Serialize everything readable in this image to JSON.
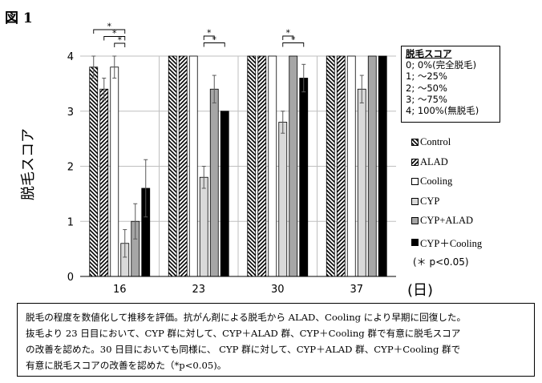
{
  "figure_label": "図 1",
  "chart_data": {
    "type": "bar",
    "ylabel": "脱毛スコア",
    "xunit": "(日)",
    "ylim": [
      0,
      4
    ],
    "yticks": [
      "0",
      "1",
      "2",
      "3",
      "4"
    ],
    "categories": [
      "16",
      "23",
      "30",
      "37"
    ],
    "grid": "horizontal",
    "series": [
      {
        "name": "Control",
        "values": [
          3.8,
          4,
          4,
          4
        ],
        "errors": [
          0.2,
          0,
          0,
          0
        ],
        "fill": "hatch-back"
      },
      {
        "name": "ALAD",
        "values": [
          3.4,
          4,
          4,
          4
        ],
        "errors": [
          0.2,
          0,
          0,
          0
        ],
        "fill": "hatch-fwd"
      },
      {
        "name": "Cooling",
        "values": [
          3.8,
          4,
          4,
          4
        ],
        "errors": [
          0.2,
          0,
          0,
          0
        ],
        "fill": "#ffffff"
      },
      {
        "name": "CYP",
        "values": [
          0.6,
          1.8,
          2.8,
          3.4
        ],
        "errors": [
          0.25,
          0.2,
          0.2,
          0.25
        ],
        "fill": "#d9d9d9"
      },
      {
        "name": "CYP+ALAD",
        "values": [
          1.0,
          3.4,
          4,
          4
        ],
        "errors": [
          0.32,
          0.25,
          0,
          0
        ],
        "fill": "#a6a6a6"
      },
      {
        "name": "CYP＋Cooling",
        "values": [
          1.6,
          3.0,
          3.6,
          4
        ],
        "errors": [
          0.52,
          0,
          0.25,
          0
        ],
        "fill": "#000000"
      }
    ],
    "significance": [
      {
        "category": "16",
        "pairs": [
          [
            "Control",
            "CYP"
          ],
          [
            "ALAD",
            "CYP"
          ],
          [
            "Cooling",
            "CYP"
          ]
        ]
      },
      {
        "category": "23",
        "pairs": [
          [
            "CYP",
            "CYP+ALAD"
          ],
          [
            "CYP",
            "CYP＋Cooling"
          ]
        ]
      },
      {
        "category": "30",
        "pairs": [
          [
            "CYP",
            "CYP+ALAD"
          ],
          [
            "CYP",
            "CYP＋Cooling"
          ]
        ]
      }
    ],
    "star": "*",
    "significance_note": "(＊ p<0.05)"
  },
  "score_box": {
    "title": "脱毛スコア",
    "lines": [
      "0;   0%(完全脱毛)",
      "1;  〜25%",
      "2;  〜50%",
      "3;  〜75%",
      "4;  100%(無脱毛)"
    ]
  },
  "caption": {
    "lines": [
      "脱毛の程度を数値化して推移を評価。抗がん剤による脱毛から ALAD、Cooling により早期に回復した。",
      "抜毛より 23 日目において、CYP 群に対して、CYP＋ALAD 群、CYP＋Cooling 群で有意に脱毛スコア",
      "の改善を認めた。30 日目においても同様に、 CYP 群に対して、CYP＋ALAD 群、CYP＋Cooling 群で",
      "有意に脱毛スコアの改善を認めた（*p<0.05)。"
    ]
  }
}
